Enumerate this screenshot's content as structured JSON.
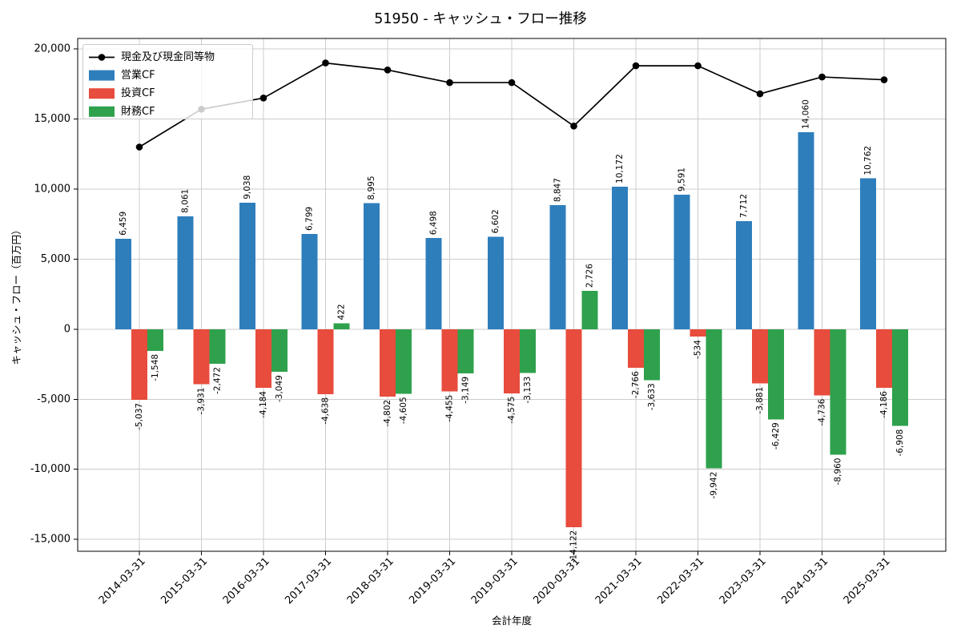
{
  "title": "51950 - キャッシュ・フロー推移",
  "chart_data": {
    "type": "bar",
    "title": "51950 - キャッシュ・フロー推移",
    "xlabel": "会計年度",
    "ylabel": "キャッシュ・フロー（百万円）",
    "categories": [
      "2014-03-31",
      "2015-03-31",
      "2016-03-31",
      "2017-03-31",
      "2018-03-31",
      "2019-03-31",
      "2019-03-31",
      "2020-03-31",
      "2021-03-31",
      "2022-03-31",
      "2023-03-31",
      "2024-03-31",
      "2025-03-31"
    ],
    "series": [
      {
        "name": "営業CF",
        "type": "bar",
        "color": "#2e7ebc",
        "values": [
          6459,
          8061,
          9038,
          6799,
          8995,
          6498,
          6602,
          8847,
          10172,
          9591,
          7712,
          14060,
          10762
        ]
      },
      {
        "name": "投資CF",
        "type": "bar",
        "color": "#e74c3c",
        "values": [
          -5037,
          -3931,
          -4184,
          -4638,
          -4802,
          -4455,
          -4575,
          -14122,
          -2766,
          -534,
          -3881,
          -4736,
          -4186
        ]
      },
      {
        "name": "財務CF",
        "type": "bar",
        "color": "#2fa14d",
        "values": [
          -1548,
          -2472,
          -3049,
          422,
          -4605,
          -3149,
          -3133,
          2726,
          -3633,
          -9942,
          -6429,
          -8960,
          -6908
        ]
      },
      {
        "name": "現金及び現金同等物",
        "type": "line",
        "color": "#000000",
        "values": [
          13000,
          15700,
          16500,
          19000,
          18500,
          17600,
          17600,
          14500,
          18800,
          18800,
          16800,
          18000,
          17800
        ]
      }
    ],
    "ylim": [
      -15850,
      20750
    ],
    "yticks": [
      -15000,
      -10000,
      -5000,
      0,
      5000,
      10000,
      15000,
      20000
    ],
    "grid": true,
    "legend_position": "upper left",
    "bar_value_labels": true,
    "colors": {
      "grid": "#cccccc",
      "axis": "#000000",
      "legend_border": "#cccccc"
    }
  }
}
